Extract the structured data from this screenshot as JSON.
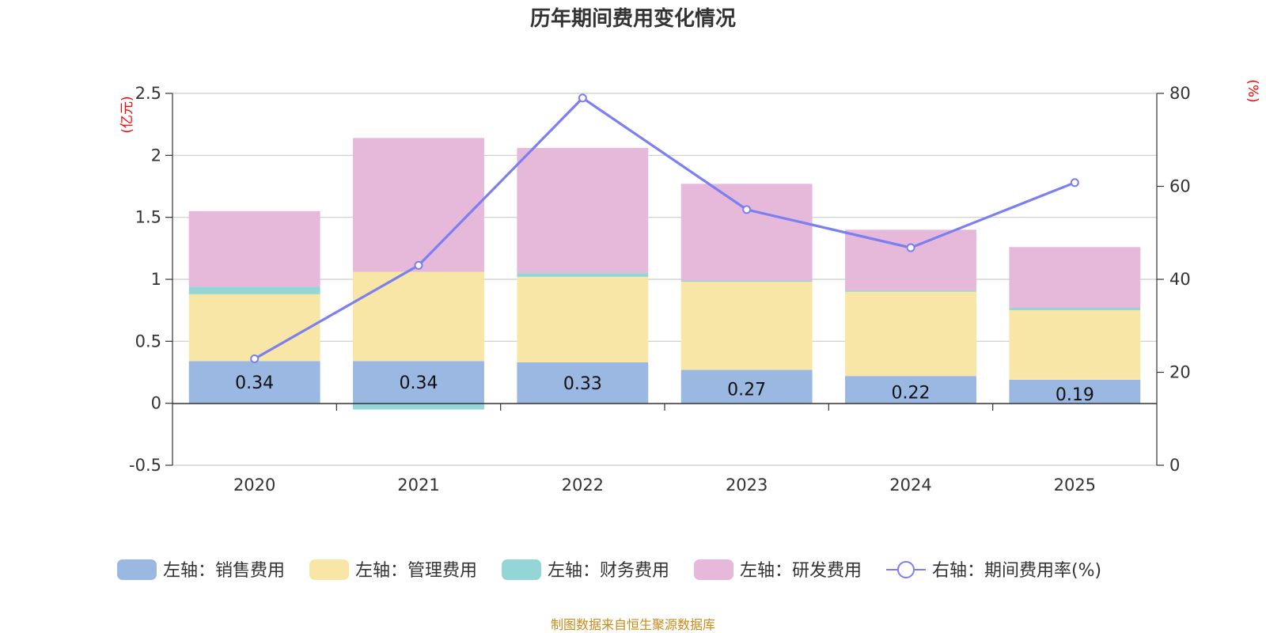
{
  "chart_data": {
    "type": "bar",
    "stacked": true,
    "title": "历年期间费用变化情况",
    "categories": [
      "2020",
      "2021",
      "2022",
      "2023",
      "2024",
      "2025"
    ],
    "left_axis": {
      "unit": "(亿元)",
      "ylim": [
        -0.5,
        2.5
      ],
      "ticks": [
        "-0.5",
        "0",
        "0.5",
        "1",
        "1.5",
        "2",
        "2.5"
      ],
      "tick_values": [
        -0.5,
        0,
        0.5,
        1,
        1.5,
        2,
        2.5
      ]
    },
    "right_axis": {
      "unit": "(%)",
      "ylim": [
        0,
        80
      ],
      "ticks": [
        "0",
        "20",
        "40",
        "60",
        "80"
      ],
      "tick_values": [
        0,
        20,
        40,
        60,
        80
      ]
    },
    "series": [
      {
        "name": "左轴：销售费用",
        "color": "#9bb8e2",
        "values": [
          0.34,
          0.34,
          0.33,
          0.27,
          0.22,
          0.19
        ],
        "data_labels": [
          "0.34",
          "0.34",
          "0.33",
          "0.27",
          "0.22",
          "0.19"
        ]
      },
      {
        "name": "左轴：管理费用",
        "color": "#f8e6a6",
        "values": [
          0.54,
          0.72,
          0.69,
          0.71,
          0.68,
          0.56
        ]
      },
      {
        "name": "左轴：财务费用",
        "color": "#94d5d5",
        "values": [
          0.06,
          -0.05,
          0.03,
          0.01,
          0.01,
          0.02
        ]
      },
      {
        "name": "左轴：研发费用",
        "color": "#e6b8d9",
        "values": [
          0.61,
          1.08,
          1.01,
          0.78,
          0.49,
          0.49
        ]
      },
      {
        "name": "右轴：期间费用率(%)",
        "type": "line",
        "axis": "right",
        "color": "#7b7ff0",
        "values": [
          22.9,
          43.0,
          79.0,
          55.0,
          46.8,
          60.8
        ]
      }
    ],
    "legend_position": "bottom",
    "grid": true
  },
  "source_note": "制图数据来自恒生聚源数据库"
}
